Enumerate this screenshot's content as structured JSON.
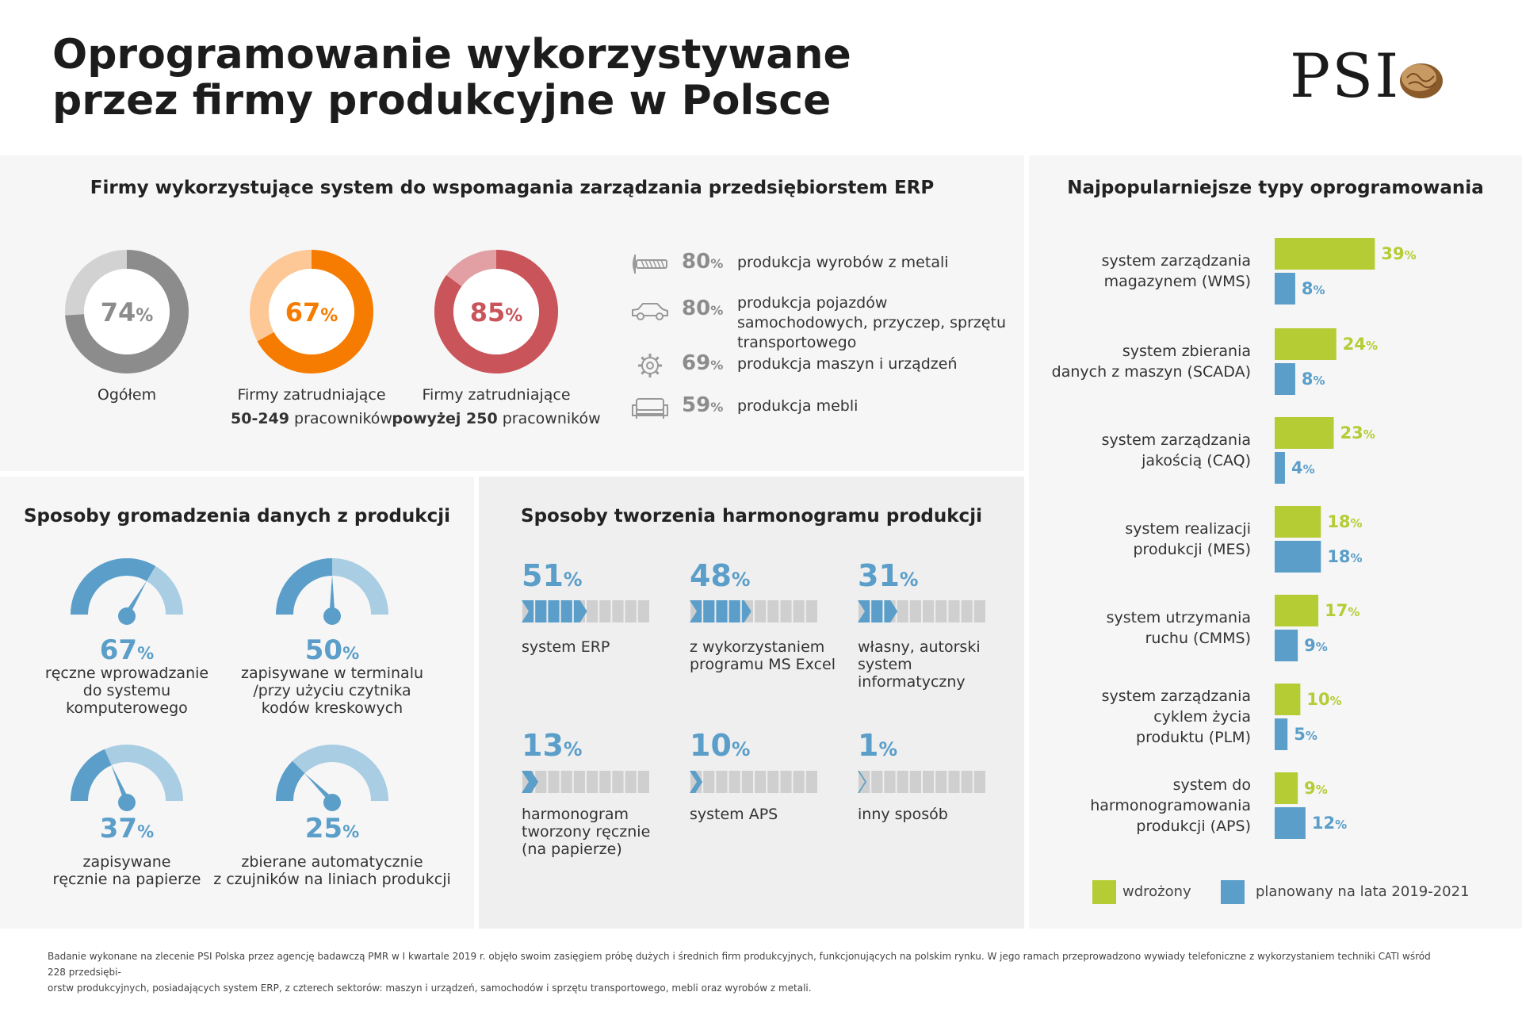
{
  "header": {
    "title_line1": "Oprogramowanie wykorzystywane",
    "title_line2": "przez firmy produkcyjne w Polsce",
    "logo_text": "PSI",
    "logo_icon": "walnut-icon"
  },
  "erp": {
    "title": "Firmy wykorzystujące system do wspomagania zarządzania przedsiębiorstem ERP",
    "donuts": [
      {
        "value": 74,
        "value_text": "74",
        "label1": "Ogółem",
        "label2_bold": "",
        "label2_rest": "",
        "color": "#8c8c8c",
        "rest_color": "#d2d2d2"
      },
      {
        "value": 67,
        "value_text": "67",
        "label1": "Firmy zatrudniające",
        "label2_bold": "50-249",
        "label2_rest": " pracowników",
        "color": "#f57c00",
        "rest_color": "#fdc896"
      },
      {
        "value": 85,
        "value_text": "85",
        "label1": "Firmy zatrudniające",
        "label2_bold": "powyżej 250",
        "label2_rest": " pracowników",
        "color": "#c9545a",
        "rest_color": "#e3a0a4"
      }
    ],
    "sectors": [
      {
        "icon": "screw-icon",
        "value": "80",
        "label": "produkcja wyrobów z metali"
      },
      {
        "icon": "car-icon",
        "value": "80",
        "label": "produkcja pojazdów samochodowych, przyczep, sprzętu transportowego"
      },
      {
        "icon": "gear-icon",
        "value": "69",
        "label": "produkcja maszyn i urządzeń"
      },
      {
        "icon": "sofa-icon",
        "value": "59",
        "label": "produkcja mebli"
      }
    ]
  },
  "data_collection": {
    "title": "Sposoby gromadzenia danych z produkcji",
    "items": [
      {
        "value": 67,
        "value_text": "67",
        "label": [
          "ręczne wprowadzanie",
          "do systemu",
          "komputerowego"
        ]
      },
      {
        "value": 50,
        "value_text": "50",
        "label": [
          "zapisywane w terminalu",
          "/przy użyciu czytnika",
          "kodów kreskowych"
        ]
      },
      {
        "value": 37,
        "value_text": "37",
        "label": [
          "zapisywane",
          "ręcznie na papierze"
        ]
      },
      {
        "value": 25,
        "value_text": "25",
        "label": [
          "zbierane automatycznie",
          "z czujników na liniach produkcji"
        ]
      }
    ]
  },
  "scheduling": {
    "title": "Sposoby tworzenia harmonogramu produkcji",
    "items": [
      {
        "value": 51,
        "value_text": "51",
        "label": [
          "system ERP"
        ]
      },
      {
        "value": 48,
        "value_text": "48",
        "label": [
          "z wykorzystaniem",
          "programu MS Excel"
        ]
      },
      {
        "value": 31,
        "value_text": "31",
        "label": [
          "własny, autorski",
          "system",
          "informatyczny"
        ]
      },
      {
        "value": 13,
        "value_text": "13",
        "label": [
          "harmonogram",
          "tworzony ręcznie",
          "(na papierze)"
        ]
      },
      {
        "value": 10,
        "value_text": "10",
        "label": [
          "system APS"
        ]
      },
      {
        "value": 1,
        "value_text": "1",
        "label": [
          "inny sposób"
        ]
      }
    ]
  },
  "percent_sign": "%",
  "chart_data": {
    "type": "bar",
    "orientation": "horizontal",
    "title": "Najpopularniejsze typy oprogramowania",
    "categories": [
      [
        "system zarządzania",
        "magazynem (WMS)"
      ],
      [
        "system zbierania",
        "danych z maszyn (SCADA)"
      ],
      [
        "system zarządzania",
        "jakością (CAQ)"
      ],
      [
        "system realizacji",
        "produkcji (MES)"
      ],
      [
        "system utrzymania",
        "ruchu (CMMS)"
      ],
      [
        "system zarządzania",
        "cyklem życia",
        "produktu (PLM)"
      ],
      [
        "system do",
        "harmonogramowania",
        "produkcji (APS)"
      ]
    ],
    "series": [
      {
        "name": "wdrożony",
        "color": "#b5cc34",
        "values": [
          39,
          24,
          23,
          18,
          17,
          10,
          9
        ]
      },
      {
        "name": "planowany na lata 2019-2021",
        "color": "#5a9ec9",
        "values": [
          8,
          8,
          4,
          18,
          9,
          5,
          12
        ]
      }
    ],
    "unit": "%",
    "legend_position": "bottom",
    "grid": false
  },
  "footnote": {
    "line1": "Badanie wykonane na zlecenie PSI Polska przez agencję badawczą PMR w I kwartale 2019 r. objęło swoim zasięgiem próbę dużych i średnich firm produkcyjnych, funkcjonujących na polskim rynku. W jego ramach przeprowadzono wywiady telefoniczne z wykorzystaniem techniki CATI wśród 228 przedsiębi-",
    "line2": "orstw produkcyjnych, posiadających system ERP, z czterech sektorów: maszyn i urządzeń, samochodów i sprzętu transportowego, mebli oraz wyrobów z metali."
  }
}
